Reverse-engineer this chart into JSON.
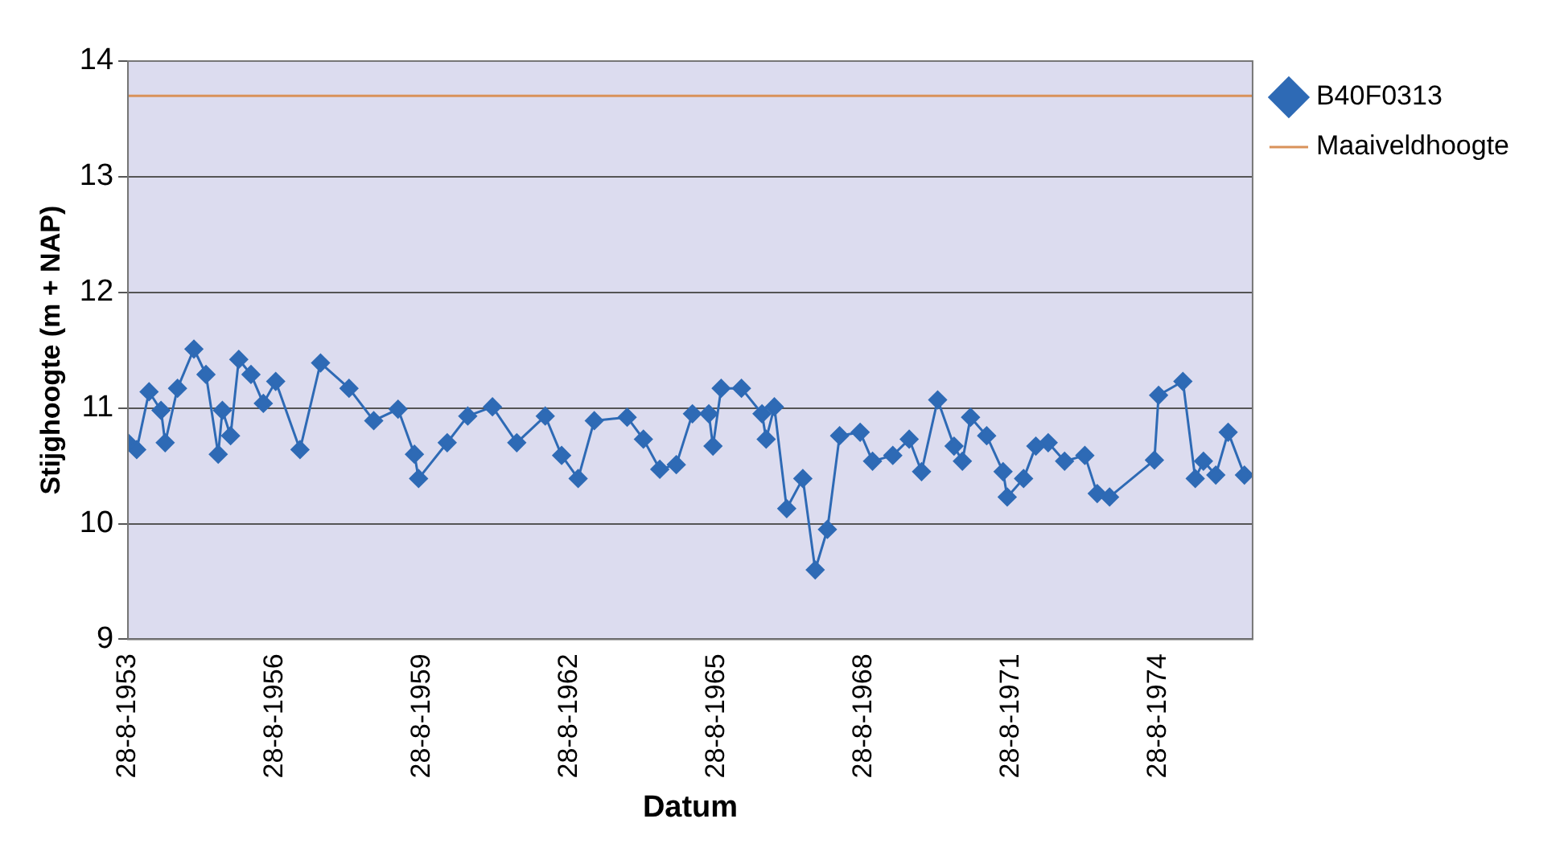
{
  "chart_data": {
    "type": "line",
    "xlabel": "Datum",
    "ylabel": "Stijghoogte (m + NAP)",
    "xlim": [
      "1953-08-28",
      "1976-08"
    ],
    "xticks": [
      {
        "value": "1953-08-28",
        "label": "28-8-1953"
      },
      {
        "value": "1956-08-28",
        "label": "28-8-1956"
      },
      {
        "value": "1959-08-28",
        "label": "28-8-1959"
      },
      {
        "value": "1962-08-28",
        "label": "28-8-1962"
      },
      {
        "value": "1965-08-28",
        "label": "28-8-1965"
      },
      {
        "value": "1968-08-28",
        "label": "28-8-1968"
      },
      {
        "value": "1971-08-28",
        "label": "28-8-1971"
      },
      {
        "value": "1974-08-28",
        "label": "28-8-1974"
      }
    ],
    "ylim": [
      9,
      14
    ],
    "yticks": [
      9,
      10,
      11,
      12,
      13,
      14
    ],
    "grid": "y",
    "legend": "right",
    "series": [
      {
        "name": "B40F0313",
        "color": "#2e6ab5",
        "marker": "diamond",
        "x": [
          "1953-08-28",
          "1953-11",
          "1954-02",
          "1954-05",
          "1954-06",
          "1954-09",
          "1955-01",
          "1955-04",
          "1955-07",
          "1955-08",
          "1955-10",
          "1955-12",
          "1956-03",
          "1956-06",
          "1956-09",
          "1957-03",
          "1957-08",
          "1958-03",
          "1958-09",
          "1959-03",
          "1959-07",
          "1959-08",
          "1960-03",
          "1960-08",
          "1961-02",
          "1961-08",
          "1962-03",
          "1962-07",
          "1962-11",
          "1963-03",
          "1963-11",
          "1964-03",
          "1964-07",
          "1964-11",
          "1965-03",
          "1965-07",
          "1965-08",
          "1965-10",
          "1966-03",
          "1966-08",
          "1966-09",
          "1966-11",
          "1967-02",
          "1967-06",
          "1967-09",
          "1967-12",
          "1968-03",
          "1968-08",
          "1968-11",
          "1969-04",
          "1969-08",
          "1969-11",
          "1970-03",
          "1970-07",
          "1970-09",
          "1970-11",
          "1971-03",
          "1971-07",
          "1971-08",
          "1971-12",
          "1972-03",
          "1972-06",
          "1972-10",
          "1973-03",
          "1973-06",
          "1973-09",
          "1974-08",
          "1974-09",
          "1975-03",
          "1975-06",
          "1975-08",
          "1975-11",
          "1976-02",
          "1976-06"
        ],
        "values": [
          10.7,
          10.64,
          11.14,
          10.98,
          10.7,
          11.17,
          11.51,
          11.29,
          10.6,
          10.98,
          10.76,
          11.42,
          11.29,
          11.04,
          11.23,
          10.64,
          11.39,
          11.17,
          10.89,
          10.99,
          10.6,
          10.39,
          10.7,
          10.93,
          11.01,
          10.7,
          10.93,
          10.59,
          10.39,
          10.89,
          10.92,
          10.73,
          10.47,
          10.51,
          10.95,
          10.95,
          10.67,
          11.17,
          11.17,
          10.95,
          10.73,
          11.01,
          10.13,
          10.39,
          9.6,
          9.95,
          10.76,
          10.79,
          10.54,
          10.59,
          10.73,
          10.45,
          11.07,
          10.67,
          10.54,
          10.92,
          10.76,
          10.45,
          10.23,
          10.39,
          10.67,
          10.7,
          10.54,
          10.59,
          10.26,
          10.23,
          10.55,
          11.11,
          11.23,
          10.39,
          10.54,
          10.42,
          10.79,
          10.42
        ]
      },
      {
        "name": "Maaiveldhoogte",
        "color": "#d9925a",
        "marker": "none",
        "x": [
          "1953-08-28",
          "1976-08"
        ],
        "values": [
          13.7,
          13.7
        ]
      }
    ]
  }
}
